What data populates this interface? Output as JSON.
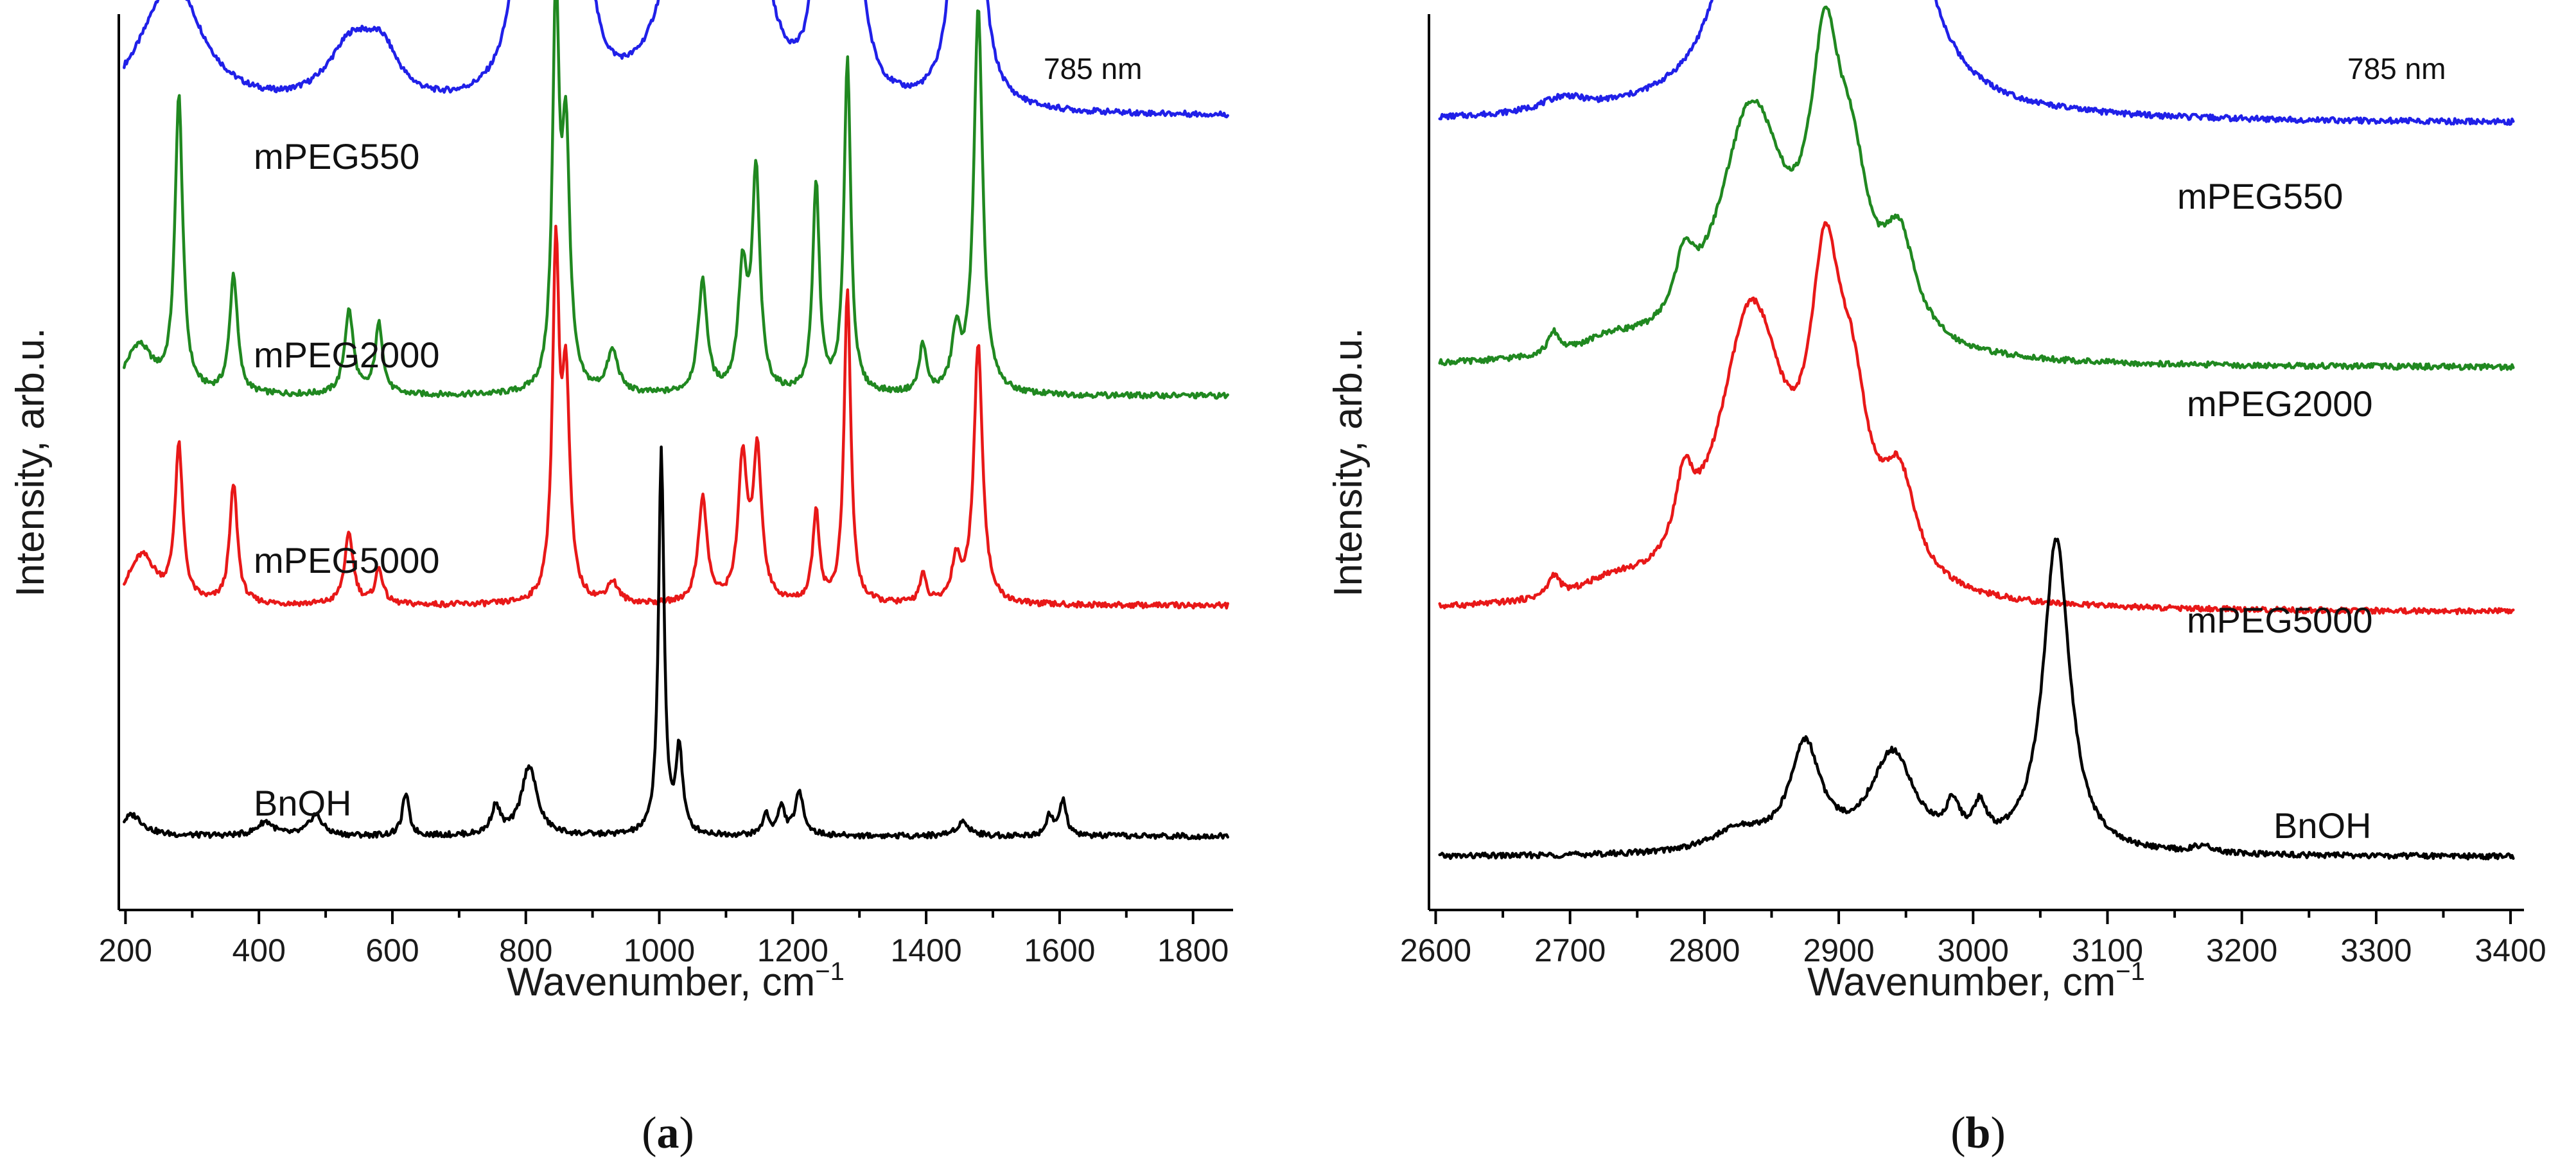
{
  "chart_data": [
    {
      "type": "line",
      "panel_label": "a",
      "note": "785 nm",
      "xlabel": "Wavenumber, cm",
      "xlabel_sup": "−1",
      "ylabel": "Intensity, arb.u.",
      "xlim": [
        190,
        1860
      ],
      "x_ticks": [
        200,
        400,
        600,
        800,
        1000,
        1200,
        1400,
        1600,
        1800
      ],
      "x_tick_labels": [
        "200",
        "400",
        "600",
        "800",
        "1000",
        "1200",
        "1400",
        "1600",
        "1800"
      ],
      "y_ticks_shown": false,
      "series": [
        {
          "name": "mPEG550",
          "color": "#2020e8",
          "baseline": 0.08,
          "offset": 0.79,
          "peaks": [
            [
              270,
              0.19,
              55
            ],
            [
              540,
              0.09,
              45
            ],
            [
              585,
              0.06,
              30
            ],
            [
              805,
              0.45,
              18
            ],
            [
              845,
              0.5,
              18
            ],
            [
              885,
              0.22,
              15
            ],
            [
              1040,
              0.32,
              35
            ],
            [
              1130,
              0.45,
              25
            ],
            [
              1240,
              0.25,
              12
            ],
            [
              1285,
              0.45,
              16
            ],
            [
              1450,
              0.3,
              14
            ],
            [
              1470,
              0.55,
              12
            ]
          ]
        },
        {
          "name": "mPEG2000",
          "color": "#208820",
          "baseline": 0.0,
          "offset": 0.47,
          "peaks": [
            [
              220,
              0.07,
              25
            ],
            [
              280,
              0.42,
              7
            ],
            [
              362,
              0.17,
              7
            ],
            [
              535,
              0.12,
              8
            ],
            [
              580,
              0.1,
              7
            ],
            [
              845,
              0.55,
              6
            ],
            [
              860,
              0.35,
              7
            ],
            [
              930,
              0.06,
              10
            ],
            [
              1065,
              0.16,
              8
            ],
            [
              1125,
              0.17,
              8
            ],
            [
              1145,
              0.31,
              7
            ],
            [
              1235,
              0.3,
              6
            ],
            [
              1282,
              0.48,
              6
            ],
            [
              1395,
              0.07,
              6
            ],
            [
              1445,
              0.08,
              8
            ],
            [
              1478,
              0.55,
              8
            ]
          ]
        },
        {
          "name": "mPEG5000",
          "color": "#e81818",
          "baseline": 0.0,
          "offset": 0.17,
          "peaks": [
            [
              225,
              0.07,
              25
            ],
            [
              280,
              0.22,
              7
            ],
            [
              362,
              0.17,
              7
            ],
            [
              535,
              0.1,
              8
            ],
            [
              580,
              0.05,
              7
            ],
            [
              845,
              0.49,
              6
            ],
            [
              860,
              0.3,
              7
            ],
            [
              930,
              0.03,
              10
            ],
            [
              1065,
              0.15,
              8
            ],
            [
              1125,
              0.2,
              8
            ],
            [
              1147,
              0.21,
              8
            ],
            [
              1235,
              0.13,
              6
            ],
            [
              1282,
              0.45,
              6
            ],
            [
              1395,
              0.04,
              6
            ],
            [
              1445,
              0.06,
              8
            ],
            [
              1478,
              0.37,
              8
            ]
          ]
        },
        {
          "name": "BnOH",
          "color": "#000000",
          "baseline": 0.0,
          "offset": -0.16,
          "peaks": [
            [
              210,
              0.03,
              20
            ],
            [
              410,
              0.02,
              15
            ],
            [
              485,
              0.03,
              12
            ],
            [
              620,
              0.06,
              6
            ],
            [
              755,
              0.04,
              8
            ],
            [
              805,
              0.1,
              14
            ],
            [
              1003,
              0.55,
              5
            ],
            [
              1030,
              0.12,
              6
            ],
            [
              1160,
              0.03,
              6
            ],
            [
              1183,
              0.04,
              6
            ],
            [
              1210,
              0.06,
              8
            ],
            [
              1455,
              0.02,
              12
            ],
            [
              1585,
              0.03,
              6
            ],
            [
              1605,
              0.05,
              6
            ]
          ]
        }
      ]
    },
    {
      "type": "line",
      "panel_label": "b",
      "note": "785 nm",
      "xlabel": "Wavenumber, cm",
      "xlabel_sup": "−1",
      "ylabel": "Intensity, arb.u.",
      "xlim": [
        2595,
        3410
      ],
      "x_ticks": [
        2600,
        2700,
        2800,
        2900,
        3000,
        3100,
        3200,
        3300,
        3400
      ],
      "x_tick_labels": [
        "2600",
        "2700",
        "2800",
        "2900",
        "3000",
        "3100",
        "3200",
        "3300",
        "3400"
      ],
      "y_ticks_shown": false,
      "series": [
        {
          "name": "mPEG550",
          "color": "#2020e8",
          "baseline": 0.0,
          "offset": 0.86,
          "peaks": [
            [
              2695,
              0.02,
              20
            ],
            [
              2825,
              0.17,
              20
            ],
            [
              2875,
              0.58,
              28
            ],
            [
              2945,
              0.33,
              22
            ]
          ]
        },
        {
          "name": "mPEG2000",
          "color": "#208820",
          "baseline": 0.0,
          "offset": 0.51,
          "peaks": [
            [
              2688,
              0.03,
              5
            ],
            [
              2730,
              0.02,
              25
            ],
            [
              2785,
              0.08,
              8
            ],
            [
              2835,
              0.35,
              30
            ],
            [
              2890,
              0.36,
              14
            ],
            [
              2910,
              0.18,
              15
            ],
            [
              2945,
              0.14,
              15
            ]
          ]
        },
        {
          "name": "mPEG5000",
          "color": "#e81818",
          "baseline": 0.0,
          "offset": 0.16,
          "peaks": [
            [
              2688,
              0.03,
              5
            ],
            [
              2730,
              0.02,
              25
            ],
            [
              2785,
              0.1,
              8
            ],
            [
              2835,
              0.41,
              30
            ],
            [
              2890,
              0.38,
              14
            ],
            [
              2910,
              0.2,
              15
            ],
            [
              2945,
              0.14,
              15
            ]
          ]
        },
        {
          "name": "BnOH",
          "color": "#000000",
          "baseline": 0.0,
          "offset": -0.19,
          "peaks": [
            [
              2825,
              0.03,
              25
            ],
            [
              2875,
              0.15,
              14
            ],
            [
              2940,
              0.14,
              20
            ],
            [
              2985,
              0.05,
              6
            ],
            [
              3005,
              0.05,
              6
            ],
            [
              3062,
              0.45,
              12
            ],
            [
              3170,
              0.01,
              10
            ]
          ]
        }
      ]
    }
  ]
}
